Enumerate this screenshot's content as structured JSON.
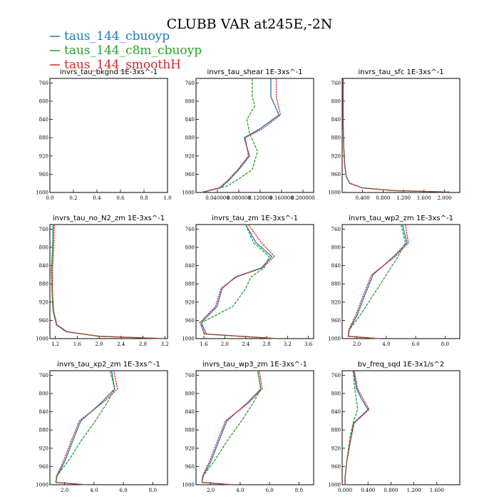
{
  "figure": {
    "title": "CLUBB VAR at245E,-2N",
    "colors": {
      "cbuoyp": "#1f77b4",
      "c8m_cbuoyp": "#2ca02c",
      "smoothH": "#d62728"
    },
    "legend": [
      {
        "label": "taus_144_cbuoyp",
        "color": "#1f77b4"
      },
      {
        "label": "taus_144_c8m_cbuoyp",
        "color": "#2ca02c"
      },
      {
        "label": "taus_144_smoothH",
        "color": "#d62728"
      }
    ]
  },
  "chart_data": [
    {
      "type": "line",
      "title": "invrs_tau_bkgnd",
      "units": "1E-3xs^-1",
      "xlim": [
        0,
        1
      ],
      "xticks": [
        "0.0",
        "0.2",
        "0.4",
        "0.6",
        "0.8",
        "1.0"
      ],
      "xtick_values": [
        0,
        0.2,
        0.4,
        0.6,
        0.8,
        1.0
      ],
      "ylim": [
        750,
        1000
      ],
      "yticks": [
        760,
        800,
        840,
        880,
        920,
        960,
        1000
      ],
      "series": []
    },
    {
      "type": "line",
      "title": "invrs_tau_shear",
      "units": "1E-3xs^-1",
      "xlim": [
        0,
        0.22
      ],
      "xticks": [
        "0.040000",
        "0.080000",
        "0.120000",
        "0.160000",
        "0.200000"
      ],
      "xtick_values": [
        0.04,
        0.08,
        0.12,
        0.16,
        0.2
      ],
      "ylim": [
        750,
        1000
      ],
      "yticks": [
        760,
        800,
        840,
        880,
        920,
        960,
        1000
      ],
      "series": [
        {
          "name": "taus_144_cbuoyp",
          "x": [
            0.14,
            0.14,
            0.155,
            0.12,
            0.09,
            0.1,
            0.08,
            0.06,
            0.045,
            0.01
          ],
          "y": [
            750,
            790,
            830,
            860,
            880,
            920,
            950,
            975,
            990,
            1000
          ]
        },
        {
          "name": "taus_144_c8m_cbuoyp",
          "x": [
            0.105,
            0.105,
            0.11,
            0.095,
            0.1,
            0.115,
            0.105,
            0.08,
            0.06,
            0.01
          ],
          "y": [
            750,
            790,
            810,
            840,
            870,
            910,
            950,
            970,
            985,
            1000
          ]
        },
        {
          "name": "taus_144_smoothH",
          "x": [
            0.15,
            0.15,
            0.158,
            0.125,
            0.092,
            0.098,
            0.078,
            0.058,
            0.043,
            0.01
          ],
          "y": [
            750,
            790,
            830,
            860,
            880,
            920,
            950,
            975,
            990,
            1000
          ]
        }
      ]
    },
    {
      "type": "line",
      "title": "invrs_tau_sfc",
      "units": "1E-3xs^-1",
      "xlim": [
        0,
        2.3
      ],
      "xticks": [
        "0.400",
        "0.800",
        "1.200",
        "1.600",
        "2.000"
      ],
      "xtick_values": [
        0.4,
        0.8,
        1.2,
        1.6,
        2.0
      ],
      "ylim": [
        750,
        1000
      ],
      "yticks": [
        760,
        800,
        840,
        880,
        920,
        960,
        1000
      ],
      "series": [
        {
          "name": "taus_144_cbuoyp",
          "x": [
            0.02,
            0.02,
            0.03,
            0.05,
            0.08,
            0.15,
            0.4,
            1.0,
            2.1
          ],
          "y": [
            750,
            850,
            900,
            940,
            965,
            980,
            990,
            996,
            999
          ]
        },
        {
          "name": "taus_144_c8m_cbuoyp",
          "x": [
            0.02,
            0.02,
            0.03,
            0.05,
            0.08,
            0.15,
            0.4,
            1.0,
            2.1
          ],
          "y": [
            750,
            850,
            900,
            940,
            965,
            980,
            990,
            996,
            999
          ]
        },
        {
          "name": "taus_144_smoothH",
          "x": [
            0.02,
            0.02,
            0.03,
            0.05,
            0.08,
            0.15,
            0.4,
            1.0,
            2.1
          ],
          "y": [
            750,
            850,
            900,
            940,
            965,
            980,
            990,
            996,
            999
          ]
        }
      ]
    },
    {
      "type": "line",
      "title": "invrs_tau_no_N2_zm",
      "units": "1E-3xs^-1",
      "xlim": [
        1.1,
        3.25
      ],
      "xticks": [
        "1.2",
        "1.6",
        "2.0",
        "2.4",
        "2.8",
        "3.2"
      ],
      "xtick_values": [
        1.2,
        1.6,
        2.0,
        2.4,
        2.8,
        3.2
      ],
      "ylim": [
        750,
        1000
      ],
      "yticks": [
        760,
        800,
        840,
        880,
        920,
        960,
        1000
      ],
      "series": [
        {
          "name": "taus_144_cbuoyp",
          "x": [
            1.16,
            1.15,
            1.13,
            1.14,
            1.16,
            1.22,
            1.4,
            2.0,
            3.2
          ],
          "y": [
            750,
            800,
            850,
            900,
            940,
            970,
            985,
            995,
            1000
          ]
        },
        {
          "name": "taus_144_c8m_cbuoyp",
          "x": [
            1.16,
            1.15,
            1.13,
            1.14,
            1.16,
            1.22,
            1.4,
            2.0,
            3.2
          ],
          "y": [
            750,
            800,
            850,
            900,
            940,
            970,
            985,
            995,
            1000
          ]
        },
        {
          "name": "taus_144_smoothH",
          "x": [
            1.18,
            1.17,
            1.15,
            1.15,
            1.17,
            1.23,
            1.42,
            2.02,
            3.2
          ],
          "y": [
            750,
            800,
            850,
            900,
            940,
            970,
            985,
            995,
            1000
          ]
        }
      ]
    },
    {
      "type": "line",
      "title": "invrs_tau_zm",
      "units": "1E-3xs^-1",
      "xlim": [
        1.45,
        3.7
      ],
      "xticks": [
        "1.6",
        "2.0",
        "2.4",
        "2.8",
        "3.2",
        "3.6"
      ],
      "xtick_values": [
        1.6,
        2.0,
        2.4,
        2.8,
        3.2,
        3.6
      ],
      "ylim": [
        750,
        1000
      ],
      "yticks": [
        760,
        800,
        840,
        880,
        920,
        960,
        1000
      ],
      "series": [
        {
          "name": "taus_144_cbuoyp",
          "x": [
            2.4,
            2.6,
            2.9,
            2.7,
            2.2,
            1.95,
            1.85,
            1.55,
            1.65,
            3.0
          ],
          "y": [
            750,
            790,
            820,
            845,
            865,
            890,
            930,
            965,
            990,
            1000
          ]
        },
        {
          "name": "taus_144_c8m_cbuoyp",
          "x": [
            2.4,
            2.55,
            2.85,
            2.75,
            2.5,
            2.4,
            2.15,
            1.55,
            1.6,
            3.0
          ],
          "y": [
            750,
            790,
            820,
            845,
            865,
            890,
            930,
            965,
            990,
            1000
          ]
        },
        {
          "name": "taus_144_smoothH",
          "x": [
            2.45,
            2.7,
            2.95,
            2.72,
            2.22,
            1.93,
            1.82,
            1.52,
            1.62,
            3.0
          ],
          "y": [
            750,
            790,
            820,
            845,
            865,
            890,
            930,
            965,
            990,
            1000
          ]
        }
      ]
    },
    {
      "type": "line",
      "title": "invrs_tau_wp2_zm",
      "units": "1E-3xs^-1",
      "xlim": [
        1.0,
        9.0
      ],
      "xticks": [
        "2.0",
        "4.0",
        "6.0",
        "8.0"
      ],
      "xtick_values": [
        2,
        4,
        6,
        8
      ],
      "ylim": [
        750,
        1000
      ],
      "yticks": [
        760,
        800,
        840,
        880,
        920,
        960,
        1000
      ],
      "series": [
        {
          "name": "taus_144_cbuoyp",
          "x": [
            5.1,
            5.4,
            4.5,
            3.1,
            2.6,
            2.0,
            1.5,
            1.4,
            3.5
          ],
          "y": [
            750,
            790,
            820,
            860,
            900,
            950,
            980,
            995,
            1000
          ]
        },
        {
          "name": "taus_144_c8m_cbuoyp",
          "x": [
            5.0,
            5.3,
            4.8,
            4.0,
            3.2,
            2.2,
            1.5,
            1.4,
            3.5
          ],
          "y": [
            750,
            790,
            820,
            860,
            900,
            950,
            980,
            995,
            1000
          ]
        },
        {
          "name": "taus_144_smoothH",
          "x": [
            5.3,
            5.5,
            4.6,
            3.0,
            2.5,
            1.9,
            1.45,
            1.4,
            3.5
          ],
          "y": [
            750,
            790,
            820,
            860,
            900,
            950,
            980,
            995,
            1000
          ]
        }
      ]
    },
    {
      "type": "line",
      "title": "invrs_tau_xp2_zm",
      "units": "1E-3xs^-1",
      "xlim": [
        1.0,
        9.0
      ],
      "xticks": [
        "2.0",
        "4.0",
        "6.0",
        "8.0"
      ],
      "xtick_values": [
        2,
        4,
        6,
        8
      ],
      "ylim": [
        750,
        1000
      ],
      "yticks": [
        760,
        800,
        840,
        880,
        920,
        960,
        1000
      ],
      "series": [
        {
          "name": "taus_144_cbuoyp",
          "x": [
            5.2,
            5.4,
            4.5,
            3.1,
            2.6,
            2.0,
            1.5,
            1.4,
            3.5
          ],
          "y": [
            750,
            790,
            820,
            860,
            900,
            950,
            980,
            995,
            1000
          ]
        },
        {
          "name": "taus_144_c8m_cbuoyp",
          "x": [
            5.1,
            5.4,
            4.9,
            4.1,
            3.2,
            2.2,
            1.5,
            1.4,
            3.5
          ],
          "y": [
            750,
            790,
            820,
            860,
            900,
            950,
            980,
            995,
            1000
          ]
        },
        {
          "name": "taus_144_smoothH",
          "x": [
            5.35,
            5.6,
            4.6,
            3.0,
            2.5,
            1.9,
            1.45,
            1.4,
            3.5
          ],
          "y": [
            750,
            790,
            820,
            860,
            900,
            950,
            980,
            995,
            1000
          ]
        }
      ]
    },
    {
      "type": "line",
      "title": "invrs_tau_wp3_zm",
      "units": "1E-3xs^-1",
      "xlim": [
        1.0,
        9.0
      ],
      "xticks": [
        "2.0",
        "4.0",
        "6.0",
        "8.0"
      ],
      "xtick_values": [
        2,
        4,
        6,
        8
      ],
      "ylim": [
        750,
        1000
      ],
      "yticks": [
        760,
        800,
        840,
        880,
        920,
        960,
        1000
      ],
      "series": [
        {
          "name": "taus_144_cbuoyp",
          "x": [
            5.2,
            5.4,
            4.5,
            3.1,
            2.6,
            2.0,
            1.5,
            1.4,
            3.5
          ],
          "y": [
            750,
            790,
            820,
            860,
            900,
            950,
            980,
            995,
            1000
          ]
        },
        {
          "name": "taus_144_c8m_cbuoyp",
          "x": [
            5.2,
            5.4,
            4.9,
            4.1,
            3.2,
            2.2,
            1.5,
            1.4,
            3.5
          ],
          "y": [
            750,
            790,
            820,
            860,
            900,
            950,
            980,
            995,
            1000
          ]
        },
        {
          "name": "taus_144_smoothH",
          "x": [
            5.3,
            5.5,
            4.6,
            3.0,
            2.5,
            1.9,
            1.45,
            1.4,
            3.5
          ],
          "y": [
            750,
            790,
            820,
            860,
            900,
            950,
            980,
            995,
            1000
          ]
        }
      ]
    },
    {
      "type": "line",
      "title": "bv_freq_sqd",
      "units": "1E-3x1/s^2",
      "xlim": [
        -0.05,
        2.0
      ],
      "xticks": [
        "0.000",
        "0.400",
        "0.800",
        "1.200",
        "1.600"
      ],
      "xtick_values": [
        0,
        0.4,
        0.8,
        1.2,
        1.6
      ],
      "ylim": [
        750,
        1000
      ],
      "yticks": [
        760,
        800,
        840,
        880,
        920,
        960,
        1000
      ],
      "series": [
        {
          "name": "taus_144_cbuoyp",
          "x": [
            0.15,
            0.2,
            0.3,
            0.4,
            0.15,
            0.1,
            0.03,
            0.0,
            0.0
          ],
          "y": [
            750,
            790,
            815,
            835,
            865,
            900,
            950,
            985,
            1000
          ]
        },
        {
          "name": "taus_144_c8m_cbuoyp",
          "x": [
            0.14,
            0.17,
            0.2,
            0.22,
            0.14,
            0.08,
            0.03,
            0.0,
            0.0
          ],
          "y": [
            750,
            790,
            815,
            835,
            865,
            900,
            950,
            985,
            1000
          ]
        },
        {
          "name": "taus_144_smoothH",
          "x": [
            0.16,
            0.22,
            0.33,
            0.42,
            0.16,
            0.1,
            0.03,
            0.0,
            0.0
          ],
          "y": [
            750,
            790,
            815,
            835,
            865,
            900,
            950,
            985,
            1000
          ]
        }
      ]
    }
  ]
}
